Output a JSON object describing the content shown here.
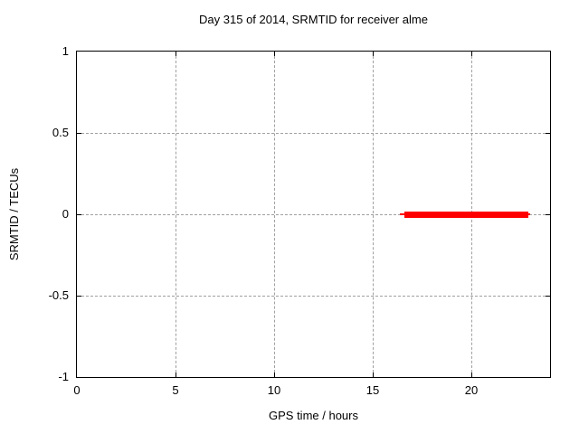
{
  "chart_data": {
    "type": "line",
    "title": "Day 315 of 2014, SRMTID for receiver alme",
    "xlabel": "GPS time / hours",
    "ylabel": "SRMTID / TECUs",
    "xlim": [
      0,
      24
    ],
    "ylim": [
      -1,
      1
    ],
    "xticks": [
      {
        "value": 0,
        "label": "0"
      },
      {
        "value": 5,
        "label": "5"
      },
      {
        "value": 10,
        "label": "10"
      },
      {
        "value": 15,
        "label": "15"
      },
      {
        "value": 20,
        "label": "20"
      }
    ],
    "yticks": [
      {
        "value": 1,
        "label": "1"
      },
      {
        "value": 0.5,
        "label": "0.5"
      },
      {
        "value": 0,
        "label": "0"
      },
      {
        "value": -0.5,
        "label": "-0.5"
      },
      {
        "value": -1,
        "label": "-1"
      }
    ],
    "grid": true,
    "legend": "none",
    "series": [
      {
        "name": "srmtid-thin-line",
        "y": 0,
        "x_start": 16.4,
        "x_end": 23.0,
        "thickness_px": 2,
        "color": "#ff0000"
      },
      {
        "name": "srmtid-thick-line",
        "y": 0,
        "x_start": 16.6,
        "x_end": 22.9,
        "thickness_px": 7,
        "color": "#ff0000"
      }
    ],
    "colors": {
      "axis": "#000000",
      "grid": "#a0a0a0",
      "data": "#ff0000",
      "background": "#ffffff",
      "text": "#000000"
    }
  }
}
